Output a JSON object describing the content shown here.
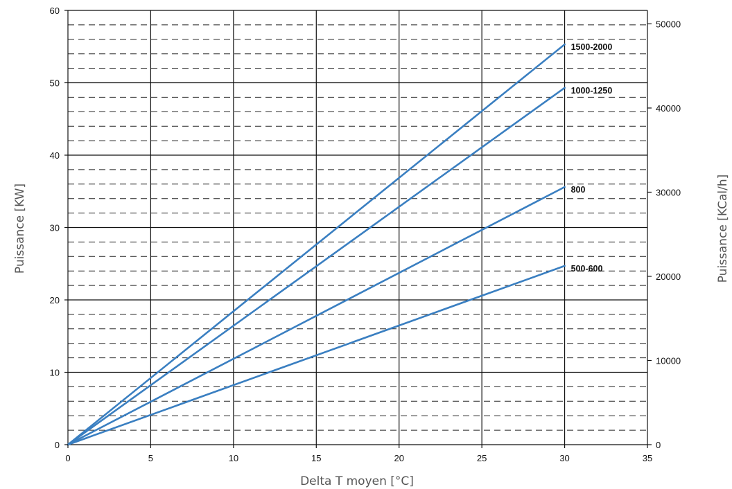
{
  "chart_data": {
    "type": "line",
    "xlabel": "Delta T moyen [°C]",
    "ylabel": "Puissance [KW]",
    "y2label": "Puissance [KCal/h]",
    "xlim": [
      0,
      35
    ],
    "ylim": [
      0,
      60
    ],
    "y2lim": [
      0,
      51600
    ],
    "x_ticks": [
      "0",
      "5",
      "10",
      "15",
      "20",
      "25",
      "30",
      "35"
    ],
    "y_ticks": [
      "0",
      "10",
      "20",
      "30",
      "40",
      "50",
      "60"
    ],
    "y2_ticks": [
      "0",
      "10000",
      "20000",
      "30000",
      "40000",
      "50000"
    ],
    "grid": {
      "major": "solid",
      "minor": "dashed",
      "minor_step_y": 2
    },
    "line_color": "#3a7fc1",
    "series": [
      {
        "name": "1500-2000",
        "x": [
          0,
          30
        ],
        "y": [
          0,
          55.3
        ]
      },
      {
        "name": "1000-1250",
        "x": [
          0,
          30
        ],
        "y": [
          0,
          49.3
        ]
      },
      {
        "name": "800",
        "x": [
          0,
          30
        ],
        "y": [
          0,
          35.6
        ]
      },
      {
        "name": "500-600",
        "x": [
          0,
          30
        ],
        "y": [
          0,
          24.7
        ]
      }
    ]
  }
}
